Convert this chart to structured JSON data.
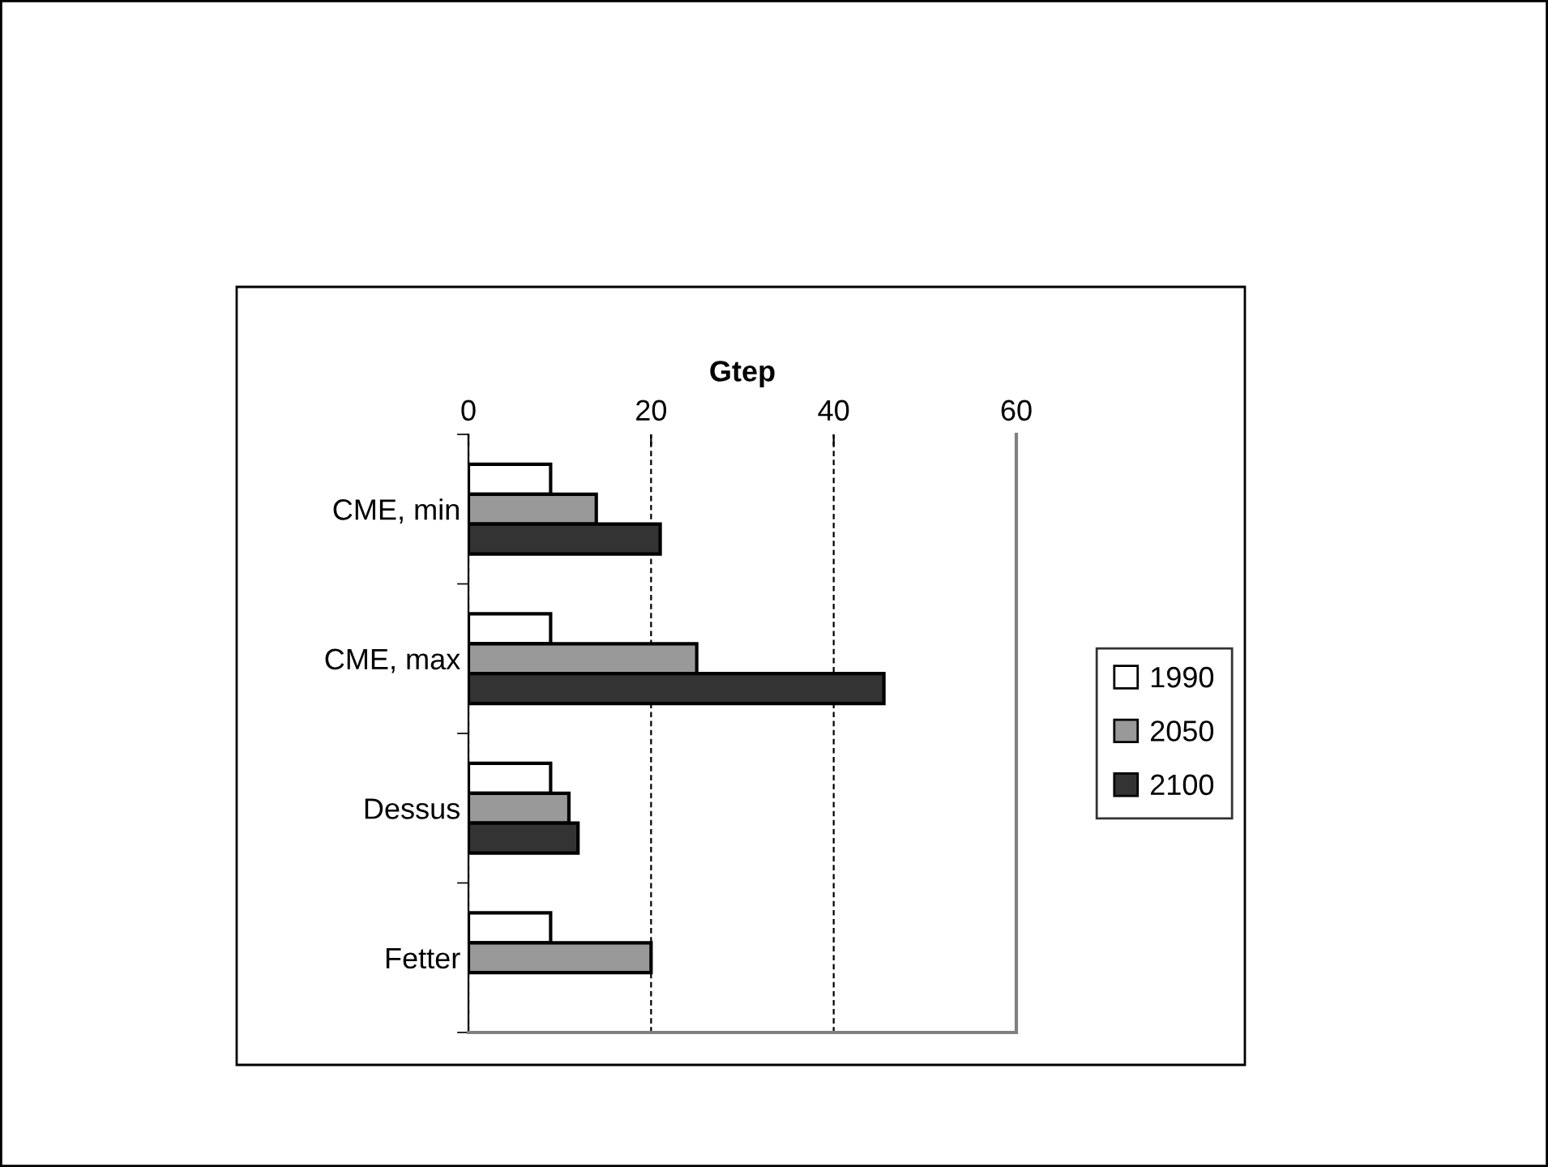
{
  "chart_data": {
    "type": "bar",
    "orientation": "horizontal",
    "xlabel": "Gtep",
    "categories": [
      "CME, min",
      "CME, max",
      "Dessus",
      "Fetter"
    ],
    "series": [
      {
        "name": "1990",
        "color": "#ffffff",
        "values": [
          9,
          9,
          9,
          9
        ]
      },
      {
        "name": "2050",
        "color": "#999999",
        "values": [
          14,
          25,
          11,
          20
        ]
      },
      {
        "name": "2100",
        "color": "#333333",
        "values": [
          21,
          45.5,
          12,
          null
        ]
      }
    ],
    "xlim": [
      0,
      60
    ],
    "xticks": [
      0,
      20,
      40,
      60
    ],
    "grid": "x",
    "legend": "right"
  }
}
